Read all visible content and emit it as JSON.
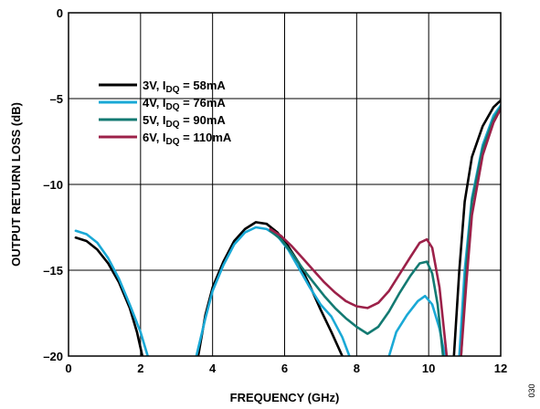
{
  "chart_data": {
    "type": "line",
    "title": "",
    "xlabel": "FREQUENCY (GHz)",
    "ylabel": "OUTPUT RETURN LOSS (dB)",
    "xlim": [
      0,
      12
    ],
    "ylim": [
      -20,
      0
    ],
    "xticks": [
      0,
      2,
      4,
      6,
      8,
      10,
      12
    ],
    "yticks": [
      0,
      -5,
      -10,
      -15,
      -20
    ],
    "xtick_labels": [
      "0",
      "2",
      "4",
      "6",
      "8",
      "10",
      "12"
    ],
    "ytick_labels": [
      "0",
      "–5",
      "–10",
      "–15",
      "–20"
    ],
    "grid": true,
    "legend_position": "top-left",
    "figure_number": "030",
    "series": [
      {
        "label_main": "3V, I",
        "label_sub": "DQ",
        "label_tail": " = 58mA",
        "color": "#000000",
        "segments": [
          [
            [
              0.2,
              -13.1
            ],
            [
              0.5,
              -13.3
            ],
            [
              0.8,
              -13.8
            ],
            [
              1.1,
              -14.6
            ],
            [
              1.4,
              -15.7
            ],
            [
              1.7,
              -17.2
            ],
            [
              1.9,
              -18.6
            ],
            [
              2.05,
              -20.0
            ]
          ],
          [
            [
              3.6,
              -20.0
            ],
            [
              3.8,
              -17.6
            ],
            [
              4.0,
              -16.0
            ],
            [
              4.3,
              -14.5
            ],
            [
              4.6,
              -13.3
            ],
            [
              4.9,
              -12.6
            ],
            [
              5.2,
              -12.2
            ],
            [
              5.5,
              -12.3
            ],
            [
              5.8,
              -12.8
            ],
            [
              6.1,
              -13.6
            ],
            [
              6.4,
              -14.6
            ],
            [
              6.7,
              -15.9
            ],
            [
              7.0,
              -17.3
            ],
            [
              7.3,
              -18.6
            ],
            [
              7.6,
              -20.0
            ]
          ],
          [
            [
              10.7,
              -20.0
            ],
            [
              10.85,
              -15.0
            ],
            [
              11.0,
              -11.0
            ],
            [
              11.2,
              -8.4
            ],
            [
              11.5,
              -6.6
            ],
            [
              11.8,
              -5.5
            ],
            [
              12.0,
              -5.1
            ]
          ]
        ]
      },
      {
        "label_main": "4V, I",
        "label_sub": "DQ",
        "label_tail": " = 76mA",
        "color": "#1aa9d6",
        "segments": [
          [
            [
              0.2,
              -12.7
            ],
            [
              0.5,
              -12.9
            ],
            [
              0.8,
              -13.4
            ],
            [
              1.1,
              -14.3
            ],
            [
              1.4,
              -15.5
            ],
            [
              1.7,
              -17.0
            ],
            [
              2.0,
              -18.6
            ],
            [
              2.2,
              -20.0
            ]
          ],
          [
            [
              3.55,
              -20.0
            ],
            [
              3.8,
              -17.8
            ],
            [
              4.0,
              -16.2
            ],
            [
              4.3,
              -14.7
            ],
            [
              4.6,
              -13.5
            ],
            [
              4.9,
              -12.8
            ],
            [
              5.2,
              -12.5
            ],
            [
              5.5,
              -12.6
            ],
            [
              5.8,
              -13.0
            ],
            [
              6.1,
              -13.8
            ],
            [
              6.4,
              -14.9
            ],
            [
              6.7,
              -16.0
            ],
            [
              7.0,
              -17.0
            ],
            [
              7.3,
              -17.7
            ],
            [
              7.6,
              -18.9
            ],
            [
              7.8,
              -20.0
            ]
          ],
          [
            [
              8.9,
              -20.0
            ],
            [
              9.1,
              -18.6
            ],
            [
              9.4,
              -17.6
            ],
            [
              9.7,
              -16.8
            ],
            [
              9.9,
              -16.5
            ],
            [
              10.1,
              -17.0
            ],
            [
              10.3,
              -18.4
            ],
            [
              10.45,
              -20.0
            ]
          ],
          [
            [
              10.85,
              -20.0
            ],
            [
              11.0,
              -15.0
            ],
            [
              11.2,
              -10.8
            ],
            [
              11.5,
              -7.7
            ],
            [
              11.8,
              -6.0
            ],
            [
              12.0,
              -5.4
            ]
          ]
        ]
      },
      {
        "label_main": "5V, I",
        "label_sub": "DQ",
        "label_tail": " = 90mA",
        "color": "#137a72",
        "segments": [
          [
            [
              5.6,
              -12.7
            ],
            [
              5.9,
              -13.2
            ],
            [
              6.2,
              -14.0
            ],
            [
              6.5,
              -14.9
            ],
            [
              6.8,
              -15.7
            ],
            [
              7.1,
              -16.5
            ],
            [
              7.4,
              -17.2
            ],
            [
              7.7,
              -17.8
            ],
            [
              8.0,
              -18.3
            ],
            [
              8.3,
              -18.7
            ],
            [
              8.6,
              -18.3
            ],
            [
              8.9,
              -17.4
            ],
            [
              9.2,
              -16.3
            ],
            [
              9.5,
              -15.3
            ],
            [
              9.75,
              -14.6
            ],
            [
              9.95,
              -14.5
            ],
            [
              10.1,
              -15.2
            ],
            [
              10.25,
              -17.0
            ],
            [
              10.4,
              -20.0
            ]
          ],
          [
            [
              10.9,
              -20.0
            ],
            [
              11.05,
              -14.6
            ],
            [
              11.2,
              -11.0
            ],
            [
              11.5,
              -7.9
            ],
            [
              11.8,
              -6.2
            ],
            [
              12.0,
              -5.5
            ]
          ]
        ]
      },
      {
        "label_main": "6V, I",
        "label_sub": "DQ",
        "label_tail": " = 110mA",
        "color": "#9c2149",
        "segments": [
          [
            [
              5.6,
              -12.6
            ],
            [
              5.9,
              -13.0
            ],
            [
              6.2,
              -13.6
            ],
            [
              6.5,
              -14.3
            ],
            [
              6.8,
              -15.0
            ],
            [
              7.1,
              -15.7
            ],
            [
              7.4,
              -16.3
            ],
            [
              7.7,
              -16.8
            ],
            [
              8.0,
              -17.1
            ],
            [
              8.3,
              -17.2
            ],
            [
              8.6,
              -16.9
            ],
            [
              8.9,
              -16.2
            ],
            [
              9.2,
              -15.2
            ],
            [
              9.5,
              -14.2
            ],
            [
              9.75,
              -13.4
            ],
            [
              9.95,
              -13.2
            ],
            [
              10.1,
              -13.7
            ],
            [
              10.3,
              -16.0
            ],
            [
              10.5,
              -20.0
            ]
          ],
          [
            [
              10.9,
              -20.0
            ],
            [
              11.05,
              -15.6
            ],
            [
              11.2,
              -11.8
            ],
            [
              11.5,
              -8.3
            ],
            [
              11.8,
              -6.4
            ],
            [
              12.0,
              -5.6
            ]
          ]
        ]
      }
    ]
  }
}
